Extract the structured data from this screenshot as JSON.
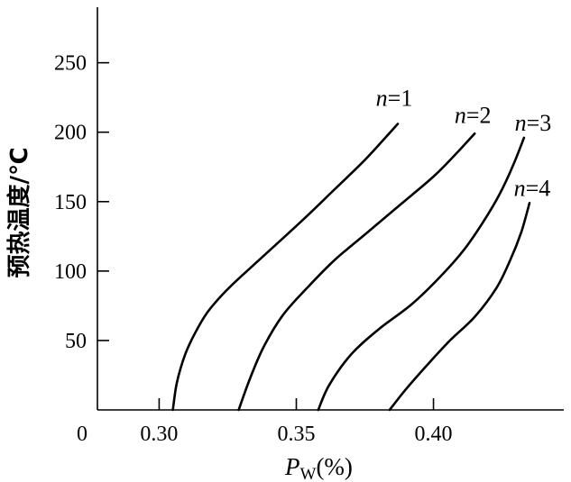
{
  "chart_data": {
    "type": "line",
    "ylabel": "预热温度/℃",
    "xlabel": {
      "var": "P",
      "sub": "W",
      "unit": "(%)"
    },
    "origin_label": "0",
    "xlim": [
      0.2775,
      0.4475
    ],
    "ylim": [
      0,
      290
    ],
    "xticks": [
      0.3,
      0.35,
      0.4
    ],
    "xtick_labels": [
      "0.30",
      "0.35",
      "0.40"
    ],
    "yticks": [
      50,
      100,
      150,
      200,
      250
    ],
    "ytick_labels": [
      "50",
      "100",
      "150",
      "200",
      "250"
    ],
    "grid": false,
    "legend": "inline-labels",
    "series": [
      {
        "name": "n=1",
        "label_var": "n",
        "label_rest": "=1",
        "x": [
          0.305,
          0.3065,
          0.3095,
          0.313,
          0.3175,
          0.324,
          0.332,
          0.342,
          0.353,
          0.363,
          0.374,
          0.382,
          0.387
        ],
        "y": [
          0,
          20,
          40,
          55,
          70,
          85,
          100,
          118,
          138,
          157,
          178,
          195,
          206
        ]
      },
      {
        "name": "n=2",
        "label_var": "n",
        "label_rest": "=2",
        "x": [
          0.329,
          0.333,
          0.338,
          0.345,
          0.354,
          0.364,
          0.376,
          0.388,
          0.4,
          0.408,
          0.415
        ],
        "y": [
          0,
          22,
          45,
          68,
          88,
          108,
          128,
          148,
          168,
          184,
          199
        ]
      },
      {
        "name": "n=3",
        "label_var": "n",
        "label_rest": "=3",
        "x": [
          0.358,
          0.362,
          0.37,
          0.38,
          0.392,
          0.402,
          0.411,
          0.418,
          0.424,
          0.429,
          0.433
        ],
        "y": [
          0,
          18,
          40,
          58,
          76,
          95,
          115,
          135,
          155,
          176,
          196
        ]
      },
      {
        "name": "n=4",
        "label_var": "n",
        "label_rest": "=4",
        "x": [
          0.384,
          0.39,
          0.398,
          0.406,
          0.415,
          0.423,
          0.428,
          0.432,
          0.435
        ],
        "y": [
          0,
          15,
          33,
          50,
          67,
          88,
          108,
          128,
          149
        ]
      }
    ]
  }
}
